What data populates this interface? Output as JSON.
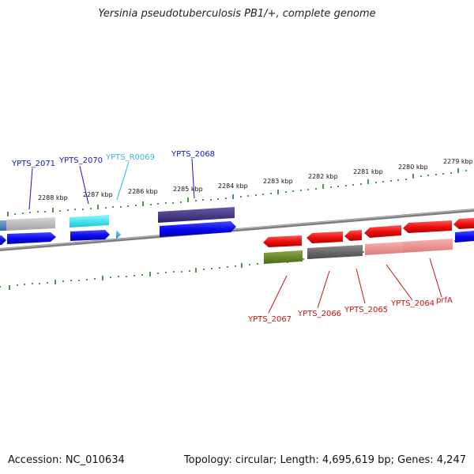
{
  "title": "Yersinia pseudotuberculosis PB1/+, complete genome",
  "accession_label": "Accession: NC_010634",
  "topology_label": "Topology: circular; Length: 4,695,619 bp; Genes: 4,247",
  "colors": {
    "backbone": "#8a8a8a",
    "ticks": "#1e7d1e",
    "forward_label": "#1515c8",
    "reverse_label": "#cc1010",
    "rna_label": "#33b8e0"
  },
  "scale_labels": [
    "2288 kbp",
    "2287 kbp",
    "2286 kbp",
    "2285 kbp",
    "2284 kbp",
    "2283 kbp",
    "2282 kbp",
    "2281 kbp",
    "2280 kbp",
    "2279 kbp"
  ],
  "gene_labels": {
    "ypts_2071": "YPTS_2071",
    "ypts_2070": "YPTS_2070",
    "ypts_r0069": "YPTS_R0069",
    "ypts_2068": "YPTS_2068",
    "ypts_2067": "YPTS_2067",
    "ypts_2066": "YPTS_2066",
    "ypts_2065": "YPTS_2065",
    "ypts_2064": "YPTS_2064",
    "prfa": "prfA"
  }
}
